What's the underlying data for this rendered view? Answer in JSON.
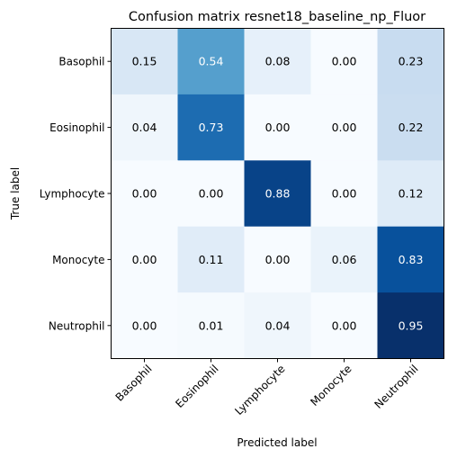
{
  "chart_data": {
    "type": "heatmap",
    "title": "Confusion matrix resnet18_baseline_np_Fluor",
    "xlabel": "Predicted label",
    "ylabel": "True label",
    "row_labels": [
      "Basophil",
      "Eosinophil",
      "Lymphocyte",
      "Monocyte",
      "Neutrophil"
    ],
    "col_labels": [
      "Basophil",
      "Eosinophil",
      "Lymphocyte",
      "Monocyte",
      "Neutrophil"
    ],
    "values": [
      [
        0.15,
        0.54,
        0.08,
        0.0,
        0.23
      ],
      [
        0.04,
        0.73,
        0.0,
        0.0,
        0.22
      ],
      [
        0.0,
        0.0,
        0.88,
        0.0,
        0.12
      ],
      [
        0.0,
        0.11,
        0.0,
        0.06,
        0.83
      ],
      [
        0.0,
        0.01,
        0.04,
        0.0,
        0.95
      ]
    ],
    "cell_labels": [
      [
        "0.15",
        "0.54",
        "0.08",
        "0.00",
        "0.23"
      ],
      [
        "0.04",
        "0.73",
        "0.00",
        "0.00",
        "0.22"
      ],
      [
        "0.00",
        "0.00",
        "0.88",
        "0.00",
        "0.12"
      ],
      [
        "0.00",
        "0.11",
        "0.00",
        "0.06",
        "0.83"
      ],
      [
        "0.00",
        "0.01",
        "0.04",
        "0.00",
        "0.95"
      ]
    ],
    "colormap": "Blues",
    "value_range": [
      0,
      0.95
    ],
    "grid": false,
    "legend": "none",
    "colors": {
      "text_dark": "#000000",
      "text_light": "#ffffff",
      "axis": "#000000"
    }
  }
}
